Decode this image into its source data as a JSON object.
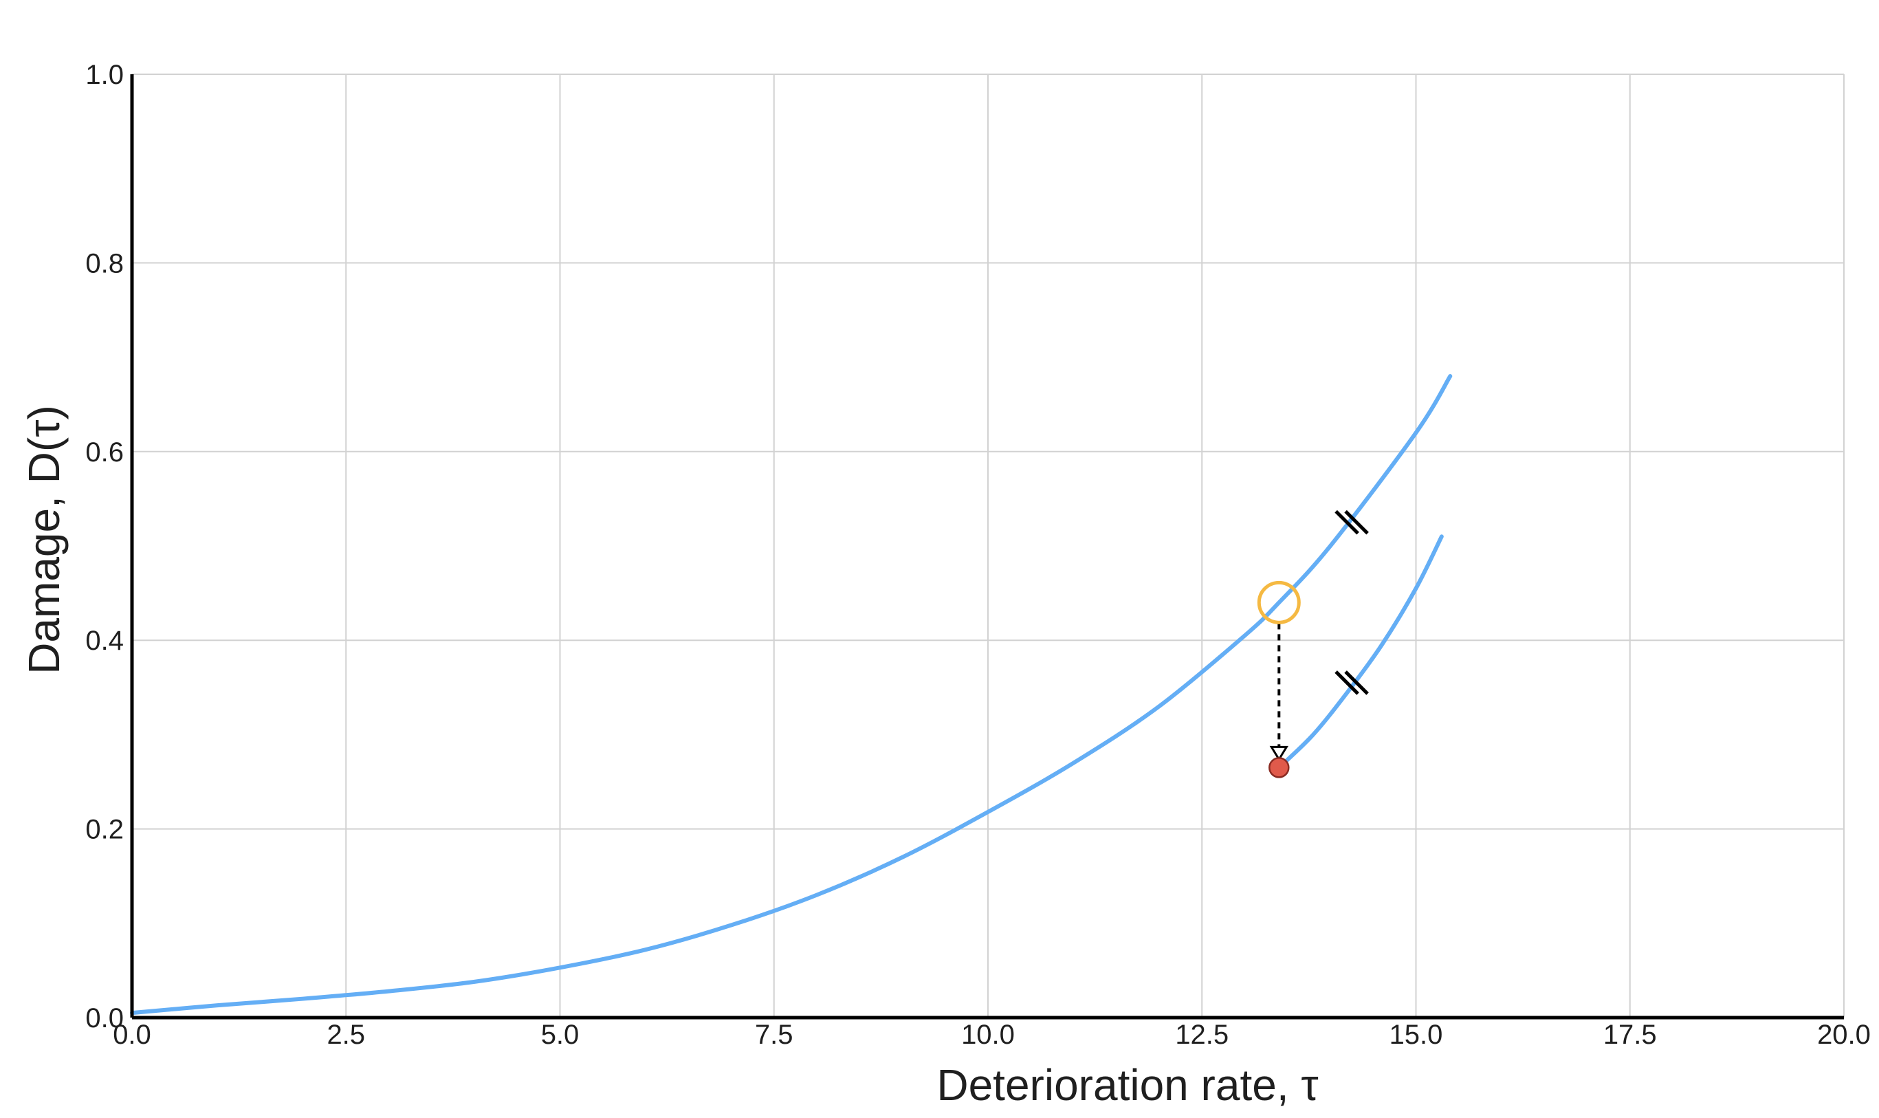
{
  "chart_data": {
    "type": "line",
    "xlabel": "Deterioration rate, τ",
    "ylabel": "Damage, D(τ)",
    "xlim": [
      0,
      20
    ],
    "ylim": [
      0,
      1
    ],
    "x_ticks": [
      "0.0",
      "2.5",
      "5.0",
      "7.5",
      "10.0",
      "12.5",
      "15.0",
      "17.5",
      "20.0"
    ],
    "y_ticks": [
      "0.0",
      "0.2",
      "0.4",
      "0.6",
      "0.8",
      "1.0"
    ],
    "grid": true,
    "series": [
      {
        "x": [
          0.0,
          1.0,
          2.0,
          3.0,
          4.0,
          5.0,
          6.0,
          7.0,
          8.0,
          9.0,
          10.0,
          11.0,
          12.0,
          13.0,
          13.4,
          14.0,
          15.0,
          15.4
        ],
        "y": [
          0.005,
          0.013,
          0.02,
          0.028,
          0.038,
          0.053,
          0.072,
          0.098,
          0.13,
          0.17,
          0.218,
          0.27,
          0.33,
          0.405,
          0.44,
          0.5,
          0.62,
          0.68
        ]
      },
      {
        "x": [
          13.4,
          13.8,
          14.2,
          14.6,
          15.0,
          15.3
        ],
        "y": [
          0.265,
          0.3,
          0.345,
          0.395,
          0.455,
          0.51
        ]
      }
    ],
    "markers": {
      "open_circle": {
        "x": 13.4,
        "y": 0.44,
        "color": "#F5B942"
      },
      "filled_point": {
        "x": 13.4,
        "y": 0.265,
        "color": "#E05A4B"
      },
      "break_marks": [
        {
          "x": 14.25,
          "y": 0.525
        },
        {
          "x": 14.25,
          "y": 0.355
        }
      ]
    },
    "colors": {
      "line": "#64AEF5",
      "arrow": "#000000"
    }
  }
}
